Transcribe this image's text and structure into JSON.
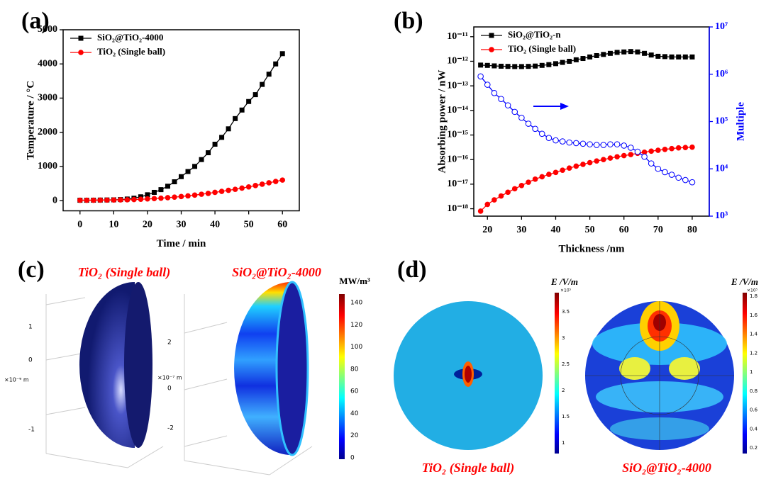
{
  "panel_labels": [
    "(a)",
    "(b)",
    "(c)",
    "(d)"
  ],
  "chart_data": [
    {
      "type": "line",
      "xlabel": "Time / min",
      "ylabel": "Temperature / °C",
      "x": [
        0,
        2,
        4,
        6,
        8,
        10,
        12,
        14,
        16,
        18,
        20,
        22,
        24,
        26,
        28,
        30,
        32,
        34,
        36,
        38,
        40,
        42,
        44,
        46,
        48,
        50,
        52,
        54,
        56,
        58,
        60
      ],
      "series": [
        {
          "name": "SiO₂@TiO₂-4000",
          "color": "#000000",
          "marker": "square",
          "values": [
            10,
            10,
            12,
            15,
            18,
            22,
            30,
            45,
            70,
            110,
            170,
            240,
            320,
            420,
            550,
            700,
            850,
            1000,
            1200,
            1400,
            1650,
            1850,
            2100,
            2400,
            2650,
            2900,
            3100,
            3400,
            3700,
            4000,
            4300
          ]
        },
        {
          "name": "TiO₂ (Single ball)",
          "color": "#ff0000",
          "marker": "circle",
          "values": [
            10,
            10,
            10,
            12,
            14,
            17,
            20,
            24,
            30,
            38,
            48,
            58,
            70,
            85,
            100,
            118,
            138,
            160,
            185,
            210,
            240,
            270,
            300,
            330,
            365,
            400,
            440,
            480,
            520,
            560,
            600
          ]
        }
      ],
      "xlim": [
        -5,
        65
      ],
      "xticks": [
        0,
        10,
        20,
        30,
        40,
        50,
        60
      ],
      "ylim": [
        -300,
        5000
      ],
      "yticks": [
        0,
        1000,
        2000,
        3000,
        4000,
        5000
      ],
      "legend": "upper left"
    },
    {
      "type": "line",
      "xlabel": "Thickness /nm",
      "ylabel": "Absorbing power / nW",
      "y2label": "Multiple",
      "x": [
        18,
        20,
        22,
        24,
        26,
        28,
        30,
        32,
        34,
        36,
        38,
        40,
        42,
        44,
        46,
        48,
        50,
        52,
        54,
        56,
        58,
        60,
        62,
        64,
        66,
        68,
        70,
        72,
        74,
        76,
        78,
        80
      ],
      "series": [
        {
          "name": "SiO₂@TiO₂-n",
          "color": "#000000",
          "marker": "square",
          "values": [
            7e-13,
            6.8e-13,
            6.5e-13,
            6.3e-13,
            6.2e-13,
            6.1e-13,
            6.1e-13,
            6.2e-13,
            6.4e-13,
            6.8e-13,
            7.3e-13,
            8e-13,
            9e-13,
            1e-12,
            1.15e-12,
            1.3e-12,
            1.5e-12,
            1.7e-12,
            1.9e-12,
            2.1e-12,
            2.3e-12,
            2.4e-12,
            2.5e-12,
            2.4e-12,
            2.1e-12,
            1.8e-12,
            1.6e-12,
            1.55e-12,
            1.5e-12,
            1.5e-12,
            1.5e-12,
            1.5e-12
          ]
        },
        {
          "name": "TiO₂ (Single ball)",
          "color": "#ff0000",
          "marker": "circle",
          "values": [
            8e-19,
            1.5e-18,
            2.3e-18,
            3.3e-18,
            4.7e-18,
            6.5e-18,
            8.8e-18,
            1.2e-17,
            1.6e-17,
            2e-17,
            2.5e-17,
            3e-17,
            3.7e-17,
            4.5e-17,
            5.4e-17,
            6.4e-17,
            7.5e-17,
            8.8e-17,
            1e-16,
            1.15e-16,
            1.3e-16,
            1.45e-16,
            1.6e-16,
            1.8e-16,
            2e-16,
            2.2e-16,
            2.4e-16,
            2.6e-16,
            2.8e-16,
            3e-16,
            3.1e-16,
            3.2e-16
          ]
        },
        {
          "color": "#0000ff",
          "marker": "open-circle",
          "axis": "y2",
          "values": [
            900000,
            600000,
            400000,
            300000,
            220000,
            160000,
            120000,
            90000,
            70000,
            55000,
            45000,
            40000,
            38000,
            36000,
            35000,
            34000,
            33000,
            32000,
            32000,
            33000,
            33000,
            31000,
            28000,
            23000,
            18000,
            13000,
            10000,
            8500,
            7500,
            6500,
            5800,
            5200
          ]
        }
      ],
      "xlim": [
        16,
        85
      ],
      "xticks": [
        20,
        30,
        40,
        50,
        60,
        70,
        80
      ],
      "ylog": true,
      "ylim": [
        5e-19,
        2.5e-11
      ],
      "yticks": [
        {
          "value": 1e-18,
          "label": "10⁻¹⁸"
        },
        {
          "value": 1e-17,
          "label": "10⁻¹⁷"
        },
        {
          "value": 1e-16,
          "label": "10⁻¹⁶"
        },
        {
          "value": 1e-15,
          "label": "10⁻¹⁵"
        },
        {
          "value": 1e-14,
          "label": "10⁻¹⁴"
        },
        {
          "value": 1e-13,
          "label": "10⁻¹³"
        },
        {
          "value": 1e-12,
          "label": "10⁻¹²"
        },
        {
          "value": 1e-11,
          "label": "10⁻¹¹"
        }
      ],
      "y2log": true,
      "y2lim": [
        1000,
        10000000
      ],
      "y2ticks": [
        {
          "value": 1000,
          "label": "10³"
        },
        {
          "value": 10000,
          "label": "10⁴"
        },
        {
          "value": 100000,
          "label": "10⁵"
        },
        {
          "value": 1000000,
          "label": "10⁶"
        },
        {
          "value": 10000000,
          "label": "10⁷"
        }
      ],
      "legend": "upper left"
    }
  ],
  "panel_c": {
    "titles": [
      "TiO₂ (Single ball)",
      "SiO₂@TiO₂-4000"
    ],
    "colorbar_title": "MW/m³",
    "colorbar_ticks": [
      0,
      20,
      40,
      60,
      80,
      100,
      120,
      140
    ],
    "left_axis_ticks": [
      1,
      0,
      -1
    ],
    "left_axis_unit": "×10⁻⁹ m",
    "right_axis_ticks": [
      2,
      0,
      -2
    ],
    "right_axis_unit": "×10⁻⁷ m"
  },
  "panel_d": {
    "titles": [
      "TiO₂ (Single ball)",
      "SiO₂@TiO₂-4000"
    ],
    "colorbar_title": "E /V/m",
    "left_colorbar_ticks": [
      1,
      1.5,
      2,
      2.5,
      3,
      3.5
    ],
    "right_colorbar_ticks": [
      0.2,
      0.4,
      0.6,
      0.8,
      1,
      1.2,
      1.4,
      1.6,
      1.8
    ],
    "colorbar_exponent": "×10⁵"
  }
}
